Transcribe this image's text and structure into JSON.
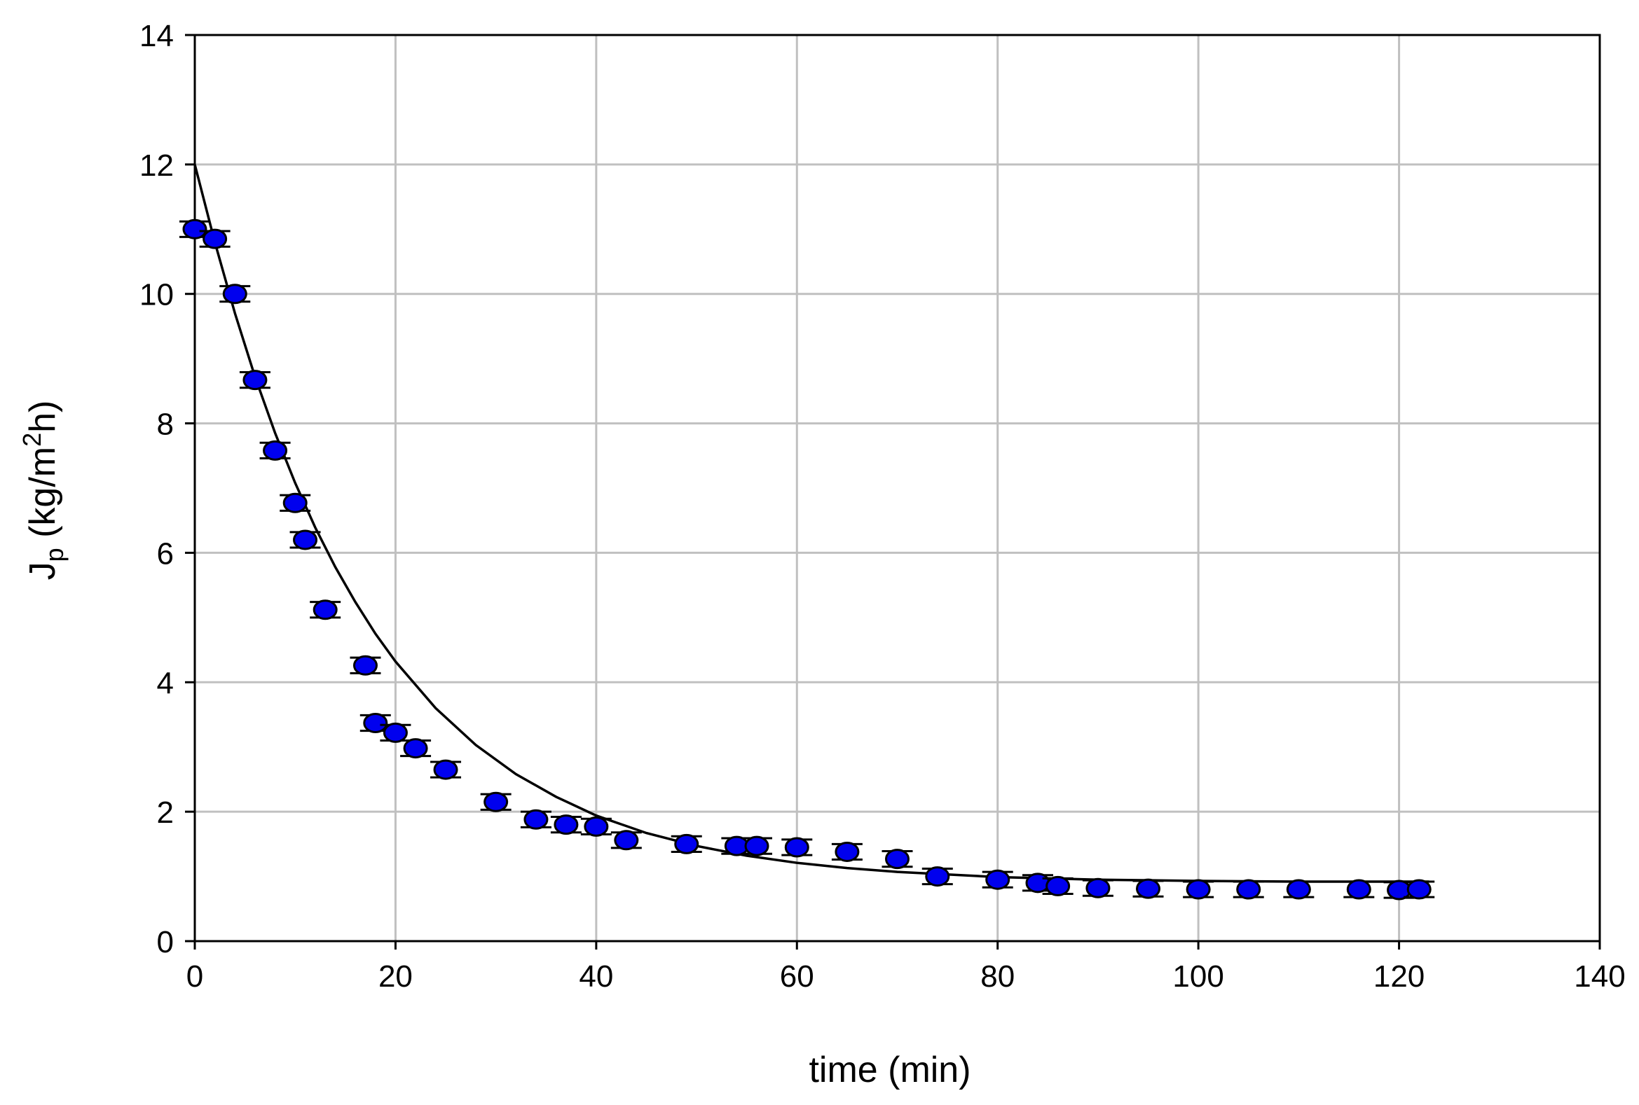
{
  "chart_data": {
    "type": "scatter",
    "xlabel": "time (min)",
    "ylabel": {
      "main": "J",
      "subscript": "p",
      "unit_prefix": " (kg/m",
      "superscript": "2",
      "unit_suffix": "h)"
    },
    "xlim": [
      0,
      140
    ],
    "ylim": [
      0,
      14
    ],
    "x_ticks": [
      "0",
      "20",
      "40",
      "60",
      "80",
      "100",
      "120",
      "140"
    ],
    "y_ticks": [
      "0",
      "2",
      "4",
      "6",
      "8",
      "10",
      "12",
      "14"
    ],
    "grid": true,
    "legend": "none",
    "series": [
      {
        "kind": "points_with_error_bars",
        "marker_color": "#0000ee",
        "marker_edge_color": "#000000",
        "error": 0.12,
        "x": [
          0,
          2,
          4,
          6,
          8,
          10,
          11,
          13,
          17,
          18,
          20,
          22,
          25,
          30,
          34,
          37,
          40,
          43,
          49,
          54,
          56,
          60,
          65,
          70,
          74,
          80,
          84,
          86,
          90,
          95,
          100,
          105,
          110,
          116,
          120,
          122
        ],
        "y": [
          11.0,
          10.85,
          10.0,
          8.67,
          7.58,
          6.77,
          6.2,
          5.12,
          4.26,
          3.37,
          3.22,
          2.98,
          2.65,
          2.15,
          1.88,
          1.8,
          1.77,
          1.56,
          1.5,
          1.47,
          1.47,
          1.45,
          1.38,
          1.27,
          1.0,
          0.95,
          0.9,
          0.85,
          0.82,
          0.81,
          0.8,
          0.8,
          0.8,
          0.8,
          0.79,
          0.8
        ]
      },
      {
        "kind": "fit_line",
        "line_color": "#000000",
        "x": [
          0,
          2,
          4,
          6,
          8,
          10,
          12,
          14,
          16,
          18,
          20,
          24,
          28,
          32,
          36,
          40,
          45,
          50,
          55,
          60,
          65,
          70,
          80,
          90,
          100,
          110,
          123
        ],
        "y": [
          12.0,
          10.8,
          9.7,
          8.72,
          7.85,
          7.08,
          6.39,
          5.78,
          5.24,
          4.75,
          4.32,
          3.6,
          3.03,
          2.58,
          2.23,
          1.94,
          1.67,
          1.47,
          1.32,
          1.21,
          1.13,
          1.07,
          0.99,
          0.95,
          0.93,
          0.92,
          0.92
        ]
      }
    ]
  }
}
